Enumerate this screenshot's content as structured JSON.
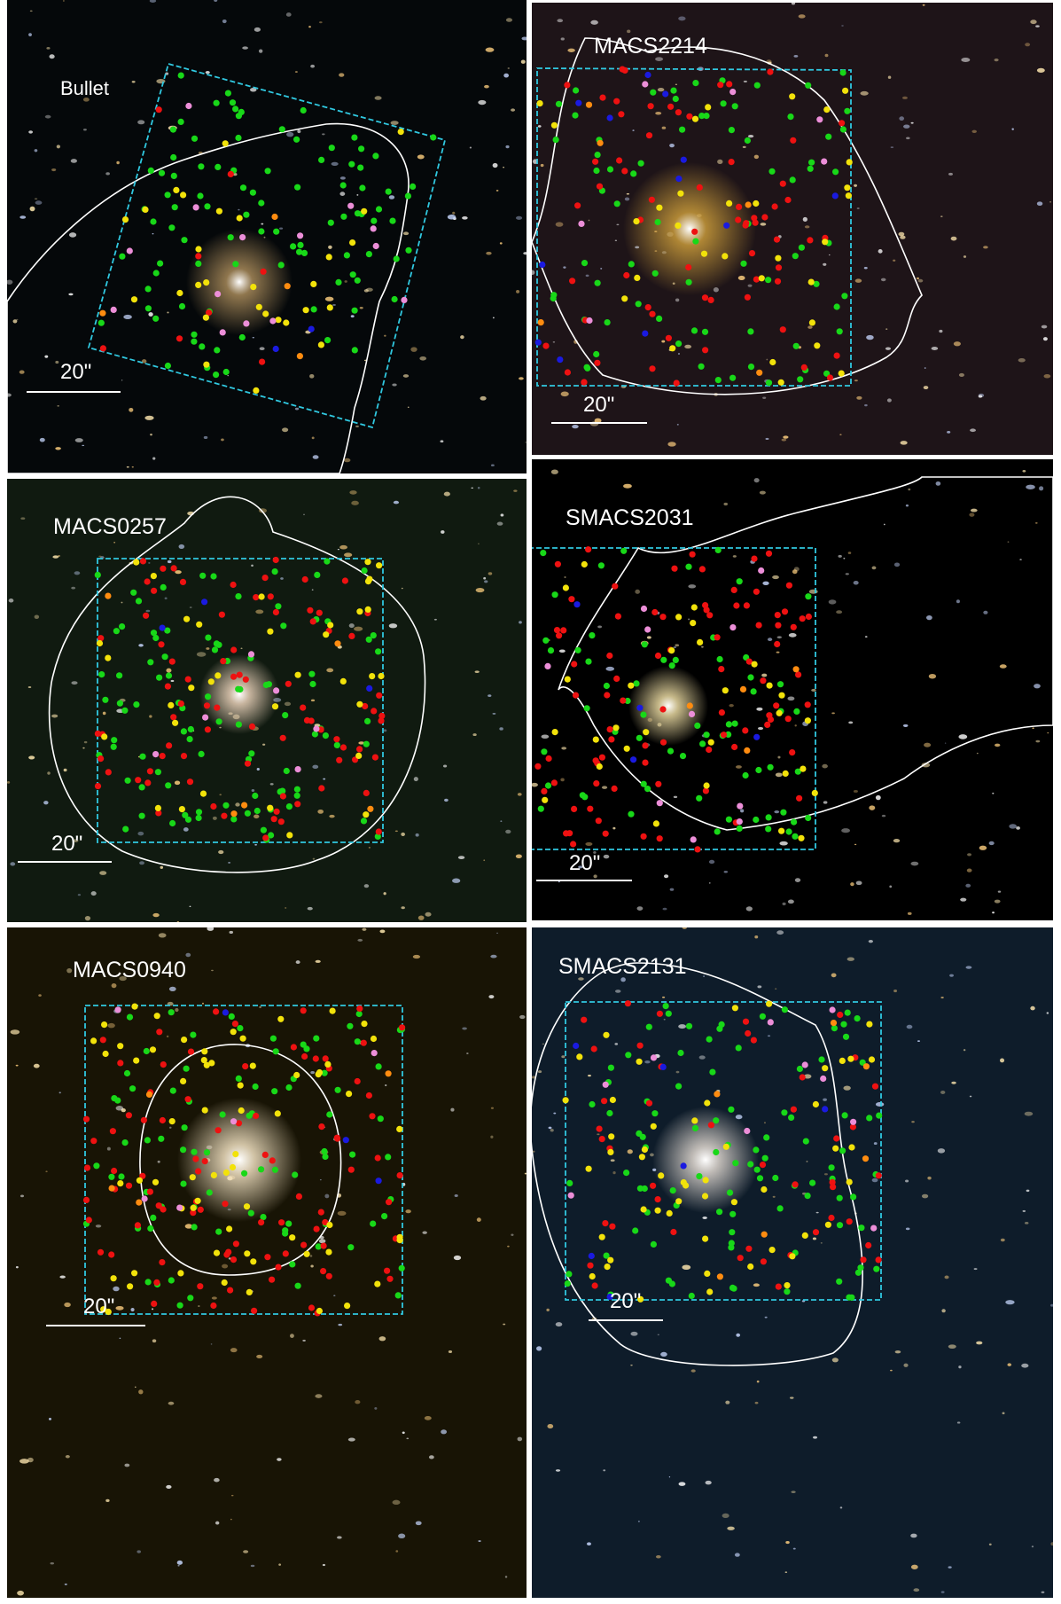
{
  "panels": [
    {
      "id": "bullet",
      "name": "Bullet",
      "scale_label": "20\"",
      "background": "#05080a",
      "glow": "#a88a5a",
      "counts": {
        "green": 95,
        "red": 8,
        "yellow": 28,
        "pink": 14,
        "orange": 4,
        "blue": 2
      }
    },
    {
      "id": "macs2214",
      "name": "MACS2214",
      "scale_label": "20\"",
      "background": "#1e1418",
      "glow": "#c89a3a",
      "counts": {
        "green": 75,
        "red": 65,
        "yellow": 30,
        "pink": 6,
        "orange": 5,
        "blue": 12
      }
    },
    {
      "id": "macs0257",
      "name": "MACS0257",
      "scale_label": "20\"",
      "background": "#101a10",
      "glow": "#e8d0b8",
      "counts": {
        "green": 95,
        "red": 80,
        "yellow": 35,
        "pink": 6,
        "orange": 5,
        "blue": 3
      }
    },
    {
      "id": "smacs2031",
      "name": "SMACS2031",
      "scale_label": "20\"",
      "background": "#000000",
      "glow": "#e8d8a0",
      "counts": {
        "green": 65,
        "red": 85,
        "yellow": 30,
        "pink": 10,
        "orange": 4,
        "blue": 4
      }
    },
    {
      "id": "macs0940",
      "name": "MACS0940",
      "scale_label": "20\"",
      "background": "#181405",
      "glow": "#f0e0c0",
      "counts": {
        "green": 85,
        "red": 90,
        "yellow": 65,
        "pink": 5,
        "orange": 4,
        "blue": 3
      }
    },
    {
      "id": "smacs2131",
      "name": "SMACS2131",
      "scale_label": "20\"",
      "background": "#0e1c2a",
      "glow": "#e0d8d0",
      "counts": {
        "green": 95,
        "red": 45,
        "yellow": 50,
        "pink": 10,
        "orange": 6,
        "blue": 6
      }
    }
  ],
  "colors": {
    "green": "#18d818",
    "red": "#ee1111",
    "yellow": "#f2e20a",
    "pink": "#ec8ed8",
    "orange": "#ff8c10",
    "blue": "#1a1ae0",
    "footprint": "#30c8e0",
    "curve": "#ffffff"
  }
}
